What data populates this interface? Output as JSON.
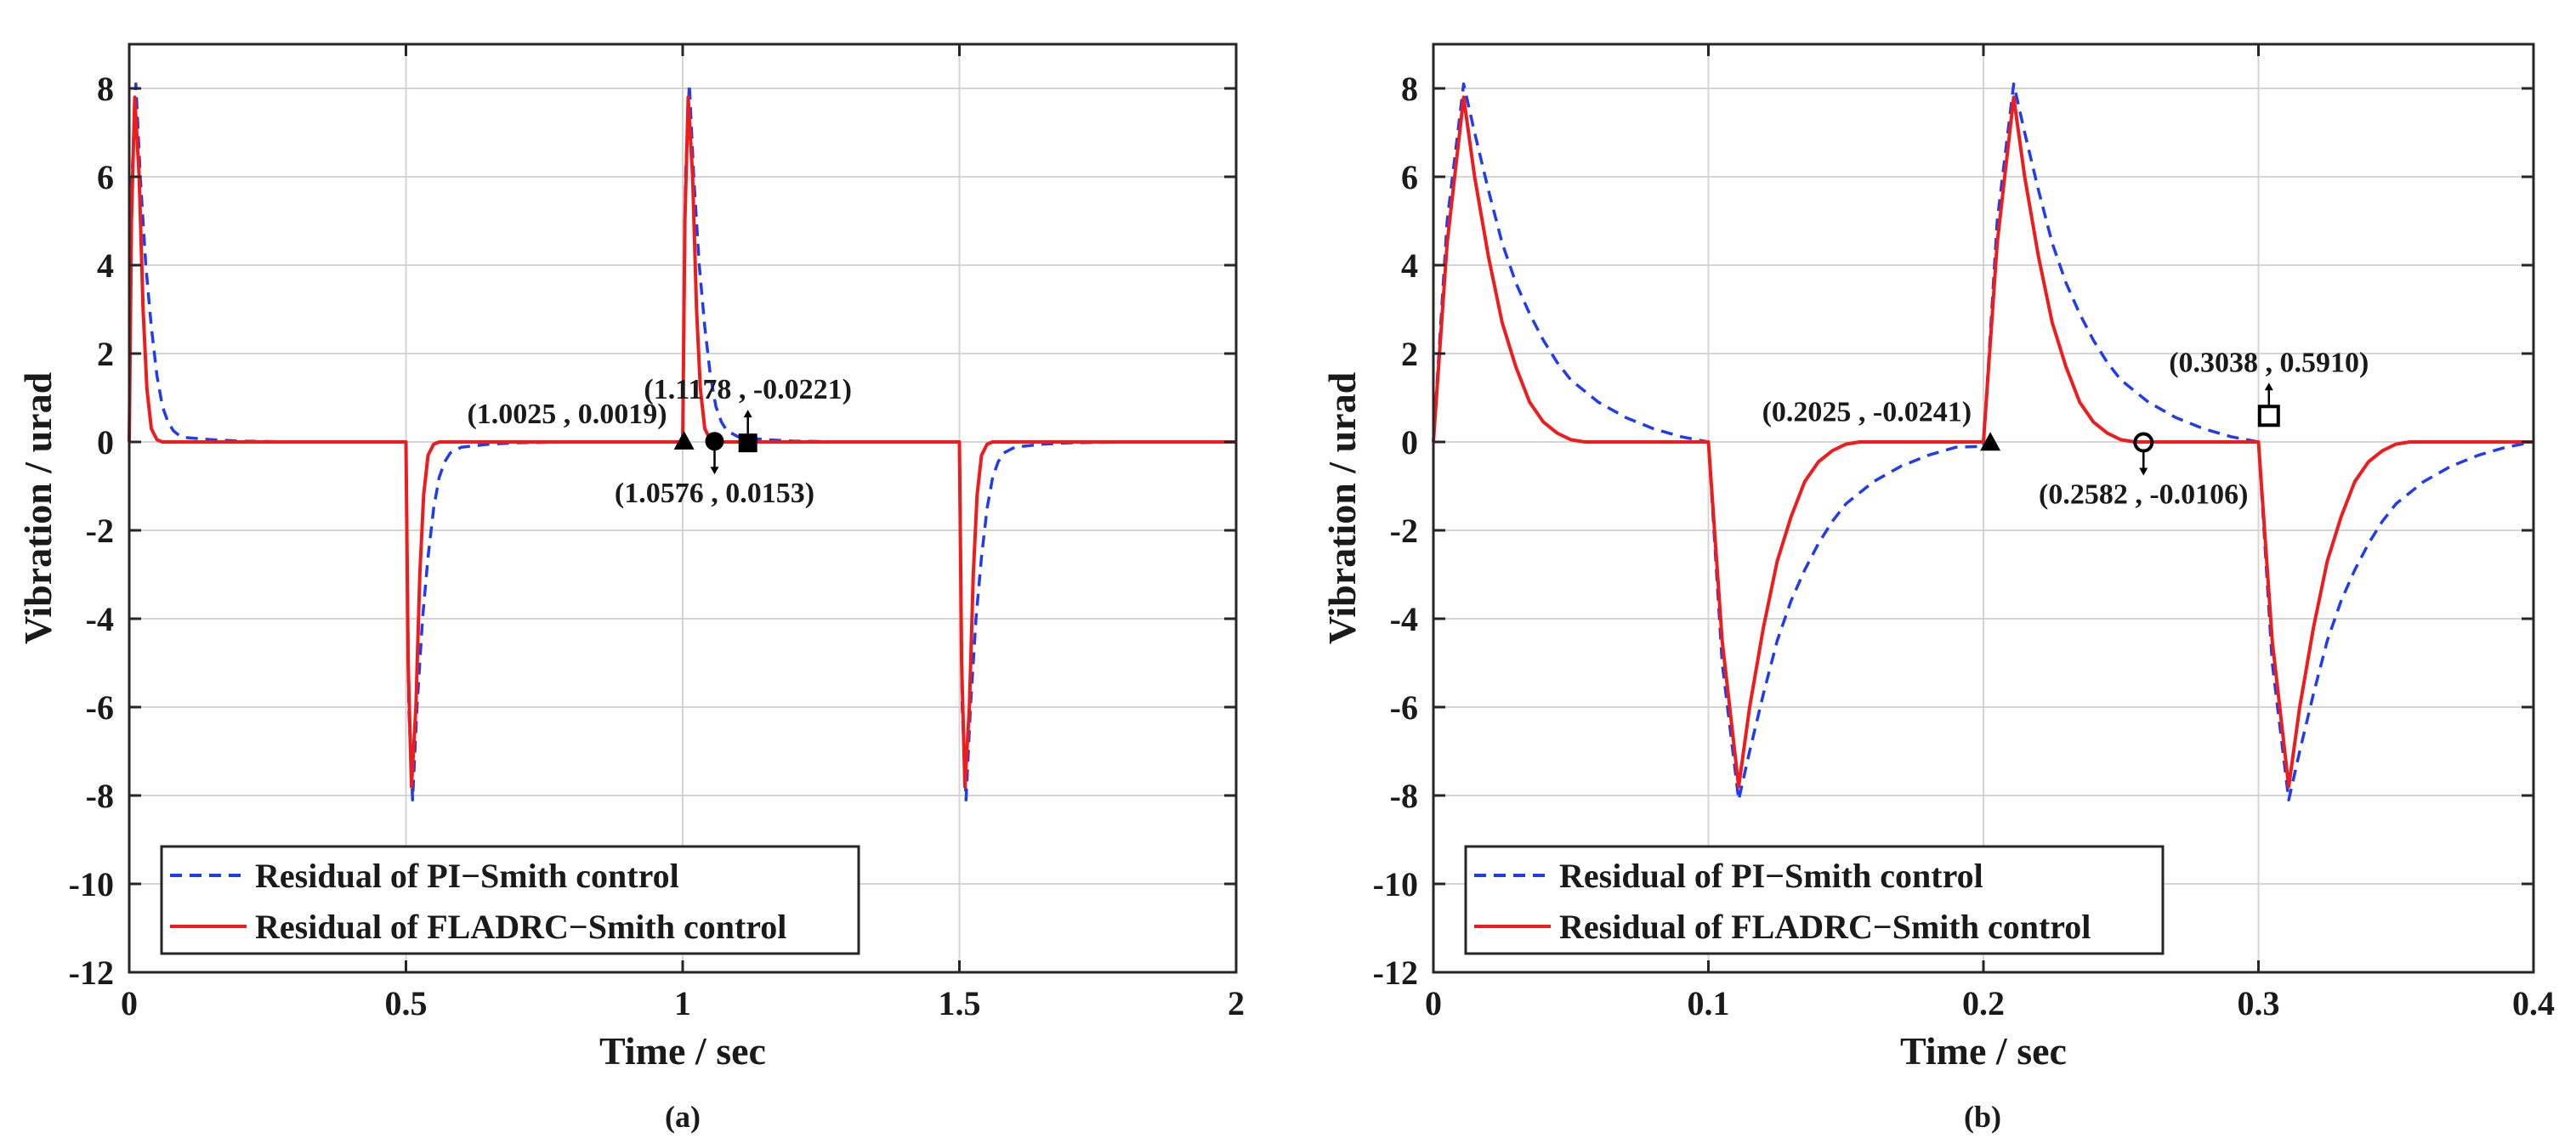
{
  "chart_data": [
    {
      "panel": "(a)",
      "type": "line",
      "xlabel": "Time / sec",
      "ylabel": "Vibration / urad",
      "xlim": [
        0,
        2
      ],
      "ylim": [
        -12,
        9
      ],
      "xticks": [
        0,
        0.5,
        1,
        1.5,
        2
      ],
      "xtick_labels": [
        "0",
        "0.5",
        "1",
        "1.5",
        "2"
      ],
      "yticks": [
        8,
        6,
        4,
        2,
        0,
        -2,
        -4,
        -6,
        -8,
        -10,
        -12
      ],
      "ytick_labels": [
        "8",
        "6",
        "4",
        "2",
        "0",
        "-2",
        "-4",
        "-6",
        "-8",
        "-10",
        "-12"
      ],
      "grid": true,
      "legend_position": "bottom-left",
      "series": [
        {
          "name": "Residual of PI−Smith control",
          "color": "#1f3cf0",
          "style": "dashed",
          "x": [
            0,
            0.005,
            0.012,
            0.02,
            0.03,
            0.04,
            0.05,
            0.06,
            0.07,
            0.08,
            0.09,
            0.1,
            0.15,
            0.2,
            0.3,
            0.4,
            0.5,
            0.505,
            0.512,
            0.52,
            0.53,
            0.54,
            0.55,
            0.56,
            0.57,
            0.58,
            0.6,
            0.65,
            0.7,
            0.8,
            0.9,
            1.0,
            1.005,
            1.012,
            1.02,
            1.03,
            1.04,
            1.05,
            1.06,
            1.07,
            1.08,
            1.1,
            1.15,
            1.2,
            1.3,
            1.4,
            1.5,
            1.505,
            1.512,
            1.52,
            1.53,
            1.54,
            1.55,
            1.56,
            1.57,
            1.58,
            1.6,
            1.65,
            1.7,
            1.8,
            1.9,
            2.0
          ],
          "y": [
            0,
            6.0,
            8.1,
            6.0,
            4.0,
            2.6,
            1.5,
            0.8,
            0.45,
            0.25,
            0.15,
            0.1,
            0.05,
            0.02,
            0.0,
            0.0,
            0.0,
            -6.0,
            -8.1,
            -6.0,
            -4.0,
            -2.6,
            -1.5,
            -0.8,
            -0.45,
            -0.25,
            -0.12,
            -0.05,
            -0.02,
            0.0,
            0.0,
            0.0,
            6.0,
            8.1,
            6.0,
            4.0,
            2.6,
            1.5,
            0.8,
            0.45,
            0.25,
            0.12,
            0.05,
            0.02,
            0.0,
            0.0,
            0.0,
            -6.0,
            -8.1,
            -6.0,
            -4.0,
            -2.6,
            -1.5,
            -0.8,
            -0.45,
            -0.25,
            -0.12,
            -0.05,
            -0.02,
            0.0,
            0.0,
            0.0
          ]
        },
        {
          "name": "Residual of FLADRC−Smith control",
          "color": "#ee1c1c",
          "style": "solid",
          "x": [
            0,
            0.004,
            0.01,
            0.018,
            0.025,
            0.032,
            0.04,
            0.05,
            0.06,
            0.1,
            0.2,
            0.3,
            0.4,
            0.5,
            0.504,
            0.51,
            0.518,
            0.525,
            0.532,
            0.54,
            0.55,
            0.56,
            0.6,
            0.7,
            0.8,
            0.9,
            1.0,
            1.004,
            1.01,
            1.018,
            1.025,
            1.032,
            1.04,
            1.05,
            1.06,
            1.1,
            1.2,
            1.3,
            1.4,
            1.5,
            1.504,
            1.51,
            1.518,
            1.525,
            1.532,
            1.54,
            1.55,
            1.56,
            1.6,
            1.7,
            1.8,
            1.9,
            2.0
          ],
          "y": [
            0,
            5.0,
            7.8,
            6.0,
            3.0,
            1.2,
            0.3,
            0.05,
            0.0,
            0.0,
            0.0,
            0.0,
            0.0,
            0.0,
            -5.0,
            -7.8,
            -6.0,
            -3.0,
            -1.2,
            -0.3,
            -0.05,
            0.0,
            0.0,
            0.0,
            0.0,
            0.0,
            0.0,
            5.0,
            7.8,
            6.0,
            3.0,
            1.2,
            0.3,
            0.05,
            0.0,
            0.0,
            0.0,
            0.0,
            0.0,
            0.0,
            -5.0,
            -7.8,
            -6.0,
            -3.0,
            -1.2,
            -0.3,
            -0.05,
            0.0,
            0.0,
            0.0,
            0.0,
            0.0,
            0.0
          ]
        }
      ],
      "annotations": [
        {
          "x": 1.0025,
          "y": 0.0019,
          "marker": "filled-triangle",
          "label": "(1.0025 , 0.0019)",
          "position": "upper-left"
        },
        {
          "x": 1.0576,
          "y": 0.0153,
          "marker": "filled-circle",
          "label": "(1.0576 , 0.0153)",
          "position": "below"
        },
        {
          "x": 1.1178,
          "y": -0.0221,
          "marker": "filled-square",
          "label": "(1.1178 , -0.0221)",
          "position": "above"
        }
      ],
      "caption": "(a)"
    },
    {
      "panel": "(b)",
      "type": "line",
      "xlabel": "Time / sec",
      "ylabel": "Vibration / urad",
      "xlim": [
        0,
        0.4
      ],
      "ylim": [
        -12,
        9
      ],
      "xticks": [
        0,
        0.1,
        0.2,
        0.3,
        0.4
      ],
      "xtick_labels": [
        "0",
        "0.1",
        "0.2",
        "0.3",
        "0.4"
      ],
      "yticks": [
        8,
        6,
        4,
        2,
        0,
        -2,
        -4,
        -6,
        -8,
        -10,
        -12
      ],
      "ytick_labels": [
        "8",
        "6",
        "4",
        "2",
        "0",
        "-2",
        "-4",
        "-6",
        "-8",
        "-10",
        "-12"
      ],
      "grid": true,
      "legend_position": "bottom-left",
      "series": [
        {
          "name": "Residual of PI−Smith control",
          "color": "#1f3cf0",
          "style": "dashed",
          "x": [
            0,
            0.005,
            0.011,
            0.015,
            0.02,
            0.025,
            0.03,
            0.035,
            0.04,
            0.045,
            0.05,
            0.06,
            0.07,
            0.08,
            0.09,
            0.1,
            0.105,
            0.111,
            0.115,
            0.12,
            0.125,
            0.13,
            0.135,
            0.14,
            0.145,
            0.15,
            0.16,
            0.17,
            0.18,
            0.19,
            0.2,
            0.205,
            0.211,
            0.215,
            0.22,
            0.225,
            0.23,
            0.235,
            0.24,
            0.245,
            0.25,
            0.26,
            0.27,
            0.28,
            0.29,
            0.3,
            0.305,
            0.311,
            0.315,
            0.32,
            0.325,
            0.33,
            0.335,
            0.34,
            0.345,
            0.35,
            0.36,
            0.37,
            0.38,
            0.39,
            0.4
          ],
          "y": [
            0,
            5.0,
            8.1,
            7.0,
            5.7,
            4.5,
            3.6,
            2.9,
            2.3,
            1.8,
            1.4,
            0.9,
            0.55,
            0.3,
            0.12,
            0.0,
            -5.0,
            -8.1,
            -7.0,
            -5.7,
            -4.5,
            -3.6,
            -2.9,
            -2.3,
            -1.8,
            -1.4,
            -0.9,
            -0.55,
            -0.3,
            -0.12,
            -0.1,
            5.0,
            8.1,
            7.0,
            5.7,
            4.5,
            3.6,
            2.9,
            2.3,
            1.8,
            1.4,
            0.9,
            0.55,
            0.3,
            0.12,
            0.0,
            -5.0,
            -8.1,
            -7.0,
            -5.7,
            -4.5,
            -3.6,
            -2.9,
            -2.3,
            -1.8,
            -1.4,
            -0.9,
            -0.55,
            -0.3,
            -0.12,
            0.0
          ]
        },
        {
          "name": "Residual of FLADRC−Smith control",
          "color": "#ee1c1c",
          "style": "solid",
          "x": [
            0,
            0.005,
            0.011,
            0.015,
            0.02,
            0.025,
            0.03,
            0.035,
            0.04,
            0.045,
            0.05,
            0.055,
            0.06,
            0.07,
            0.08,
            0.09,
            0.1,
            0.105,
            0.111,
            0.115,
            0.12,
            0.125,
            0.13,
            0.135,
            0.14,
            0.145,
            0.15,
            0.155,
            0.16,
            0.17,
            0.18,
            0.19,
            0.2,
            0.205,
            0.211,
            0.215,
            0.22,
            0.225,
            0.23,
            0.235,
            0.24,
            0.245,
            0.25,
            0.255,
            0.26,
            0.27,
            0.28,
            0.29,
            0.3,
            0.305,
            0.311,
            0.315,
            0.32,
            0.325,
            0.33,
            0.335,
            0.34,
            0.345,
            0.35,
            0.355,
            0.36,
            0.37,
            0.38,
            0.39,
            0.4
          ],
          "y": [
            0,
            4.5,
            7.8,
            6.0,
            4.2,
            2.7,
            1.7,
            0.9,
            0.45,
            0.2,
            0.05,
            0.0,
            0.0,
            0.0,
            0.0,
            0.0,
            0.0,
            -4.5,
            -7.8,
            -6.0,
            -4.2,
            -2.7,
            -1.7,
            -0.9,
            -0.45,
            -0.2,
            -0.05,
            0.0,
            0.0,
            0.0,
            0.0,
            0.0,
            0.0,
            4.5,
            7.8,
            6.0,
            4.2,
            2.7,
            1.7,
            0.9,
            0.45,
            0.2,
            0.05,
            0.0,
            0.0,
            0.0,
            0.0,
            0.0,
            0.0,
            -4.5,
            -7.8,
            -6.0,
            -4.2,
            -2.7,
            -1.7,
            -0.9,
            -0.45,
            -0.2,
            -0.05,
            0.0,
            0.0,
            0.0,
            0.0,
            0.0,
            0.0
          ]
        }
      ],
      "annotations": [
        {
          "x": 0.2025,
          "y": -0.0241,
          "marker": "filled-triangle",
          "label": "(0.2025 , -0.0241)",
          "position": "upper-left"
        },
        {
          "x": 0.2582,
          "y": -0.0106,
          "marker": "open-circle",
          "label": "(0.2582 , -0.0106)",
          "position": "below"
        },
        {
          "x": 0.3038,
          "y": 0.591,
          "marker": "open-square",
          "label": "(0.3038 , 0.5910)",
          "position": "above"
        }
      ],
      "caption": "(b)"
    }
  ]
}
